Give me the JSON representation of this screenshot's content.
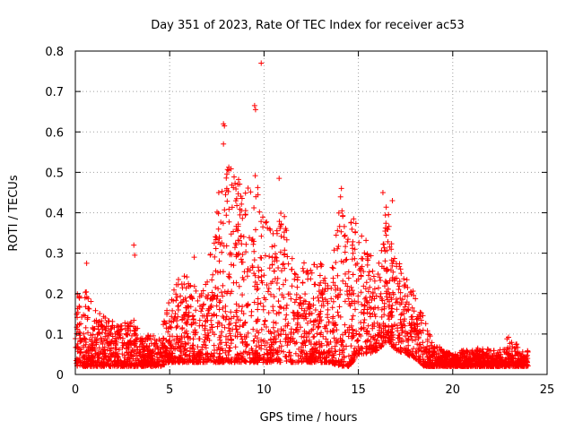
{
  "chart_data": {
    "type": "scatter",
    "title": "Day 351 of 2023, Rate Of TEC Index for receiver ac53",
    "xlabel": "GPS time / hours",
    "ylabel": "ROTI / TECUs",
    "xlim": [
      0,
      25
    ],
    "ylim": [
      0,
      0.8
    ],
    "xticks": [
      "0",
      "5",
      "10",
      "15",
      "20",
      "25"
    ],
    "yticks": [
      "0",
      "0.1",
      "0.2",
      "0.3",
      "0.4",
      "0.5",
      "0.6",
      "0.7",
      "0.8"
    ],
    "grid": true,
    "marker": "+",
    "color": "#ff0000",
    "series": [
      {
        "envelope_x": [
          0,
          0.5,
          1,
          1.5,
          2,
          2.5,
          3,
          3.5,
          4,
          4.5,
          5,
          5.5,
          6,
          6.5,
          7,
          7.5,
          8,
          8.5,
          9,
          9.5,
          10,
          10.5,
          11,
          11.5,
          12,
          12.5,
          13,
          13.5,
          14,
          14.5,
          15,
          15.5,
          16,
          16.5,
          17,
          17.5,
          18,
          18.5,
          19,
          19.5,
          20,
          20.5,
          21,
          21.5,
          22,
          22.5,
          23,
          23.5,
          24
        ],
        "envelope_low": [
          0.02,
          0.02,
          0.02,
          0.02,
          0.02,
          0.02,
          0.02,
          0.02,
          0.02,
          0.02,
          0.03,
          0.03,
          0.03,
          0.03,
          0.03,
          0.03,
          0.03,
          0.03,
          0.03,
          0.03,
          0.03,
          0.03,
          0.03,
          0.03,
          0.03,
          0.03,
          0.03,
          0.03,
          0.02,
          0.02,
          0.05,
          0.05,
          0.06,
          0.08,
          0.06,
          0.05,
          0.04,
          0.02,
          0.02,
          0.02,
          0.02,
          0.02,
          0.02,
          0.02,
          0.02,
          0.02,
          0.02,
          0.02,
          0.02
        ],
        "envelope_high": [
          0.21,
          0.22,
          0.16,
          0.15,
          0.13,
          0.12,
          0.15,
          0.09,
          0.1,
          0.1,
          0.19,
          0.24,
          0.25,
          0.2,
          0.23,
          0.45,
          0.52,
          0.5,
          0.45,
          0.5,
          0.4,
          0.36,
          0.44,
          0.3,
          0.28,
          0.27,
          0.28,
          0.21,
          0.46,
          0.38,
          0.4,
          0.32,
          0.28,
          0.43,
          0.3,
          0.24,
          0.2,
          0.14,
          0.08,
          0.06,
          0.05,
          0.06,
          0.06,
          0.07,
          0.06,
          0.06,
          0.1,
          0.07,
          0.06
        ],
        "outliers": [
          {
            "x": 0.6,
            "y": 0.275
          },
          {
            "x": 3.1,
            "y": 0.32
          },
          {
            "x": 3.15,
            "y": 0.295
          },
          {
            "x": 6.3,
            "y": 0.29
          },
          {
            "x": 7.6,
            "y": 0.45
          },
          {
            "x": 7.85,
            "y": 0.62
          },
          {
            "x": 7.9,
            "y": 0.615
          },
          {
            "x": 7.85,
            "y": 0.57
          },
          {
            "x": 9.5,
            "y": 0.665
          },
          {
            "x": 9.55,
            "y": 0.655
          },
          {
            "x": 9.85,
            "y": 0.77
          },
          {
            "x": 10.8,
            "y": 0.485
          },
          {
            "x": 14.1,
            "y": 0.46
          },
          {
            "x": 16.3,
            "y": 0.45
          },
          {
            "x": 16.8,
            "y": 0.43
          }
        ]
      }
    ]
  }
}
